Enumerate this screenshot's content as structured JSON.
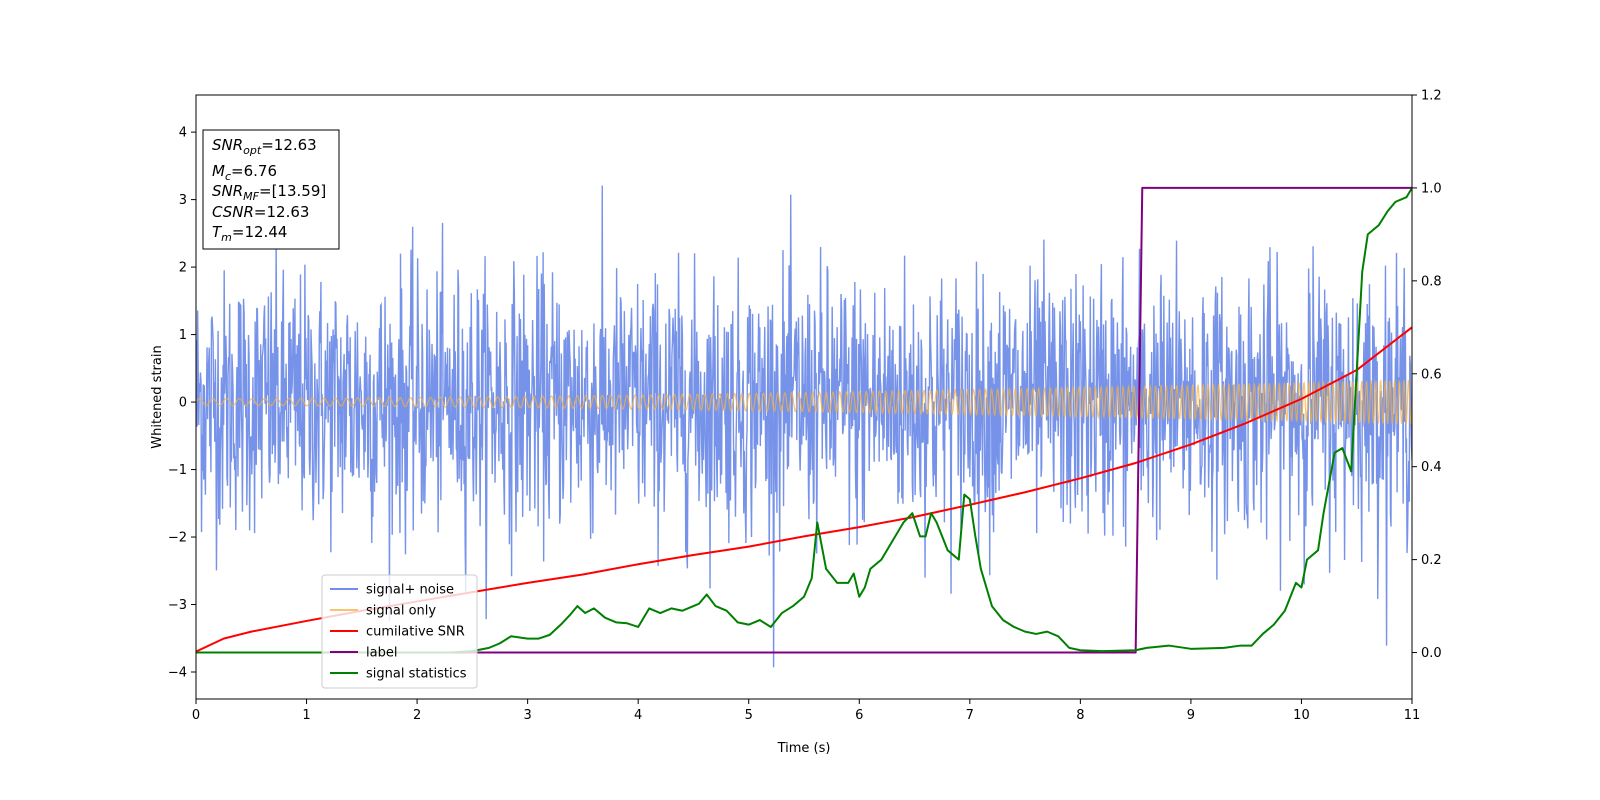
{
  "chart_data": {
    "type": "line",
    "title": "",
    "xlabel": "Time (s)",
    "ylabel": "Whitened strain",
    "y2label": "",
    "xlim": [
      0,
      11
    ],
    "ylim": [
      -4.4,
      4.55
    ],
    "y2lim": [
      -0.1,
      1.2
    ],
    "xticks": [
      0,
      1,
      2,
      3,
      4,
      5,
      6,
      7,
      8,
      9,
      10,
      11
    ],
    "yticks": [
      -4,
      -3,
      -2,
      -1,
      0,
      1,
      2,
      3,
      4
    ],
    "y2ticks": [
      0.0,
      0.2,
      0.4,
      0.6,
      0.8,
      1.0,
      1.2
    ],
    "grid": false,
    "legend_position": "lower-left",
    "info_box": {
      "snr_opt": {
        "base": "SNR",
        "sub": "opt",
        "value": "=12.63"
      },
      "mc": {
        "base": "M",
        "sub": "c",
        "value": "=6.76"
      },
      "snr_mf": {
        "base": "SNR",
        "sub": "MF",
        "value": "=[13.59]"
      },
      "csnr": {
        "base": "CSNR",
        "value": "=12.63"
      },
      "tm": {
        "base": "T",
        "sub": "m",
        "value": "=12.44"
      }
    },
    "series": [
      {
        "name": "signal+ noise",
        "axis": "left",
        "color": "#4169e1",
        "kind": "noise",
        "noise_std": 0.95,
        "noise_peak_range": [
          -4.0,
          4.0
        ],
        "samples": 2200
      },
      {
        "name": "signal only",
        "axis": "left",
        "color": "#f5b041",
        "kind": "chirp",
        "amplitude_start": 0.05,
        "amplitude_end": 0.33,
        "frequency_start": 8.0,
        "frequency_end": 24.0
      },
      {
        "name": "cumilative SNR",
        "axis": "right",
        "color": "#ff0000",
        "x": [
          0,
          0.25,
          0.5,
          1,
          1.5,
          2,
          2.5,
          3,
          3.5,
          4,
          4.5,
          5,
          5.5,
          6,
          6.5,
          7,
          7.5,
          8,
          8.5,
          9,
          9.5,
          10,
          10.5,
          11
        ],
        "y": [
          0.002,
          0.03,
          0.045,
          0.068,
          0.09,
          0.11,
          0.13,
          0.15,
          0.168,
          0.19,
          0.21,
          0.228,
          0.25,
          0.27,
          0.292,
          0.318,
          0.345,
          0.375,
          0.408,
          0.448,
          0.494,
          0.546,
          0.608,
          0.7
        ]
      },
      {
        "name": "label",
        "axis": "right",
        "color": "#800080",
        "x": [
          0,
          8.5,
          8.56,
          11
        ],
        "y": [
          0,
          0,
          1,
          1
        ]
      },
      {
        "name": "signal statistics",
        "axis": "right",
        "color": "#008000",
        "x": [
          0,
          0.5,
          1,
          1.5,
          2,
          2.3,
          2.5,
          2.65,
          2.75,
          2.85,
          3.0,
          3.1,
          3.2,
          3.3,
          3.38,
          3.45,
          3.52,
          3.6,
          3.7,
          3.8,
          3.9,
          4.0,
          4.1,
          4.2,
          4.3,
          4.4,
          4.5,
          4.55,
          4.62,
          4.7,
          4.8,
          4.9,
          5.0,
          5.1,
          5.2,
          5.3,
          5.4,
          5.5,
          5.57,
          5.62,
          5.7,
          5.8,
          5.9,
          5.95,
          6.0,
          6.05,
          6.1,
          6.2,
          6.3,
          6.4,
          6.48,
          6.55,
          6.6,
          6.65,
          6.7,
          6.8,
          6.9,
          6.95,
          7.0,
          7.05,
          7.1,
          7.2,
          7.3,
          7.4,
          7.5,
          7.6,
          7.7,
          7.8,
          7.9,
          8.0,
          8.2,
          8.5,
          8.6,
          8.8,
          9.0,
          9.3,
          9.45,
          9.55,
          9.65,
          9.75,
          9.85,
          9.95,
          10.0,
          10.05,
          10.15,
          10.2,
          10.3,
          10.37,
          10.45,
          10.55,
          10.6,
          10.7,
          10.78,
          10.85,
          10.95,
          11.0
        ],
        "y": [
          0.0,
          0.0,
          0.0,
          0.0,
          0.0,
          0.0,
          0.003,
          0.01,
          0.02,
          0.035,
          0.03,
          0.03,
          0.038,
          0.06,
          0.08,
          0.1,
          0.085,
          0.095,
          0.075,
          0.065,
          0.063,
          0.055,
          0.095,
          0.085,
          0.095,
          0.09,
          0.1,
          0.105,
          0.125,
          0.1,
          0.09,
          0.065,
          0.06,
          0.07,
          0.055,
          0.085,
          0.1,
          0.12,
          0.16,
          0.28,
          0.18,
          0.15,
          0.15,
          0.17,
          0.12,
          0.14,
          0.18,
          0.2,
          0.24,
          0.28,
          0.3,
          0.25,
          0.25,
          0.3,
          0.28,
          0.22,
          0.2,
          0.34,
          0.33,
          0.25,
          0.18,
          0.1,
          0.07,
          0.055,
          0.045,
          0.04,
          0.045,
          0.035,
          0.01,
          0.005,
          0.003,
          0.005,
          0.01,
          0.015,
          0.008,
          0.01,
          0.015,
          0.015,
          0.04,
          0.06,
          0.09,
          0.15,
          0.14,
          0.2,
          0.22,
          0.3,
          0.43,
          0.44,
          0.39,
          0.82,
          0.9,
          0.92,
          0.95,
          0.97,
          0.98,
          1.0
        ]
      }
    ]
  }
}
